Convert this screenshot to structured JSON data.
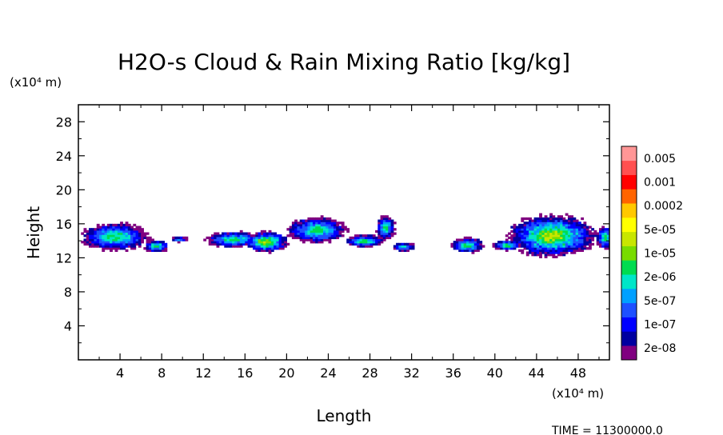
{
  "chart_data": {
    "type": "heatmap",
    "title": "H2O-s Cloud & Rain Mixing Ratio [kg/kg]",
    "xlabel": "Length",
    "ylabel": "Height",
    "x_unit": "(x10⁴ m)",
    "y_unit": "(x10⁴ m)",
    "xlim": [
      0,
      51
    ],
    "ylim": [
      0,
      30
    ],
    "x_ticks": [
      "4",
      "8",
      "12",
      "16",
      "20",
      "24",
      "28",
      "32",
      "36",
      "40",
      "44",
      "48"
    ],
    "y_ticks": [
      "4",
      "8",
      "12",
      "16",
      "20",
      "24",
      "28"
    ],
    "x_tick_values": [
      4,
      8,
      12,
      16,
      20,
      24,
      28,
      32,
      36,
      40,
      44,
      48
    ],
    "y_tick_values": [
      4,
      8,
      12,
      16,
      20,
      24,
      28
    ],
    "grid": false,
    "colorbar": {
      "levels": [
        "2e-08",
        "1e-07",
        "5e-07",
        "2e-06",
        "1e-05",
        "5e-05",
        "0.0002",
        "0.001",
        "0.005"
      ],
      "colors": [
        "#800080",
        "#0000a0",
        "#0000ff",
        "#1e50ff",
        "#00a0ff",
        "#00e6c8",
        "#00dc50",
        "#78dc00",
        "#c8e600",
        "#ffff00",
        "#ffc800",
        "#ff6400",
        "#ff0000",
        "#ff5050",
        "#ff9696"
      ]
    },
    "cloud_regions": [
      {
        "cx": 3.5,
        "cy": 14.5,
        "rx": 3.2,
        "ry": 1.6,
        "peak": 6
      },
      {
        "cx": 7.5,
        "cy": 13.4,
        "rx": 1.2,
        "ry": 0.7,
        "peak": 6
      },
      {
        "cx": 9.7,
        "cy": 14.2,
        "rx": 0.8,
        "ry": 0.3,
        "peak": 4
      },
      {
        "cx": 14.9,
        "cy": 14.2,
        "rx": 2.6,
        "ry": 0.9,
        "peak": 6
      },
      {
        "cx": 18.0,
        "cy": 13.9,
        "rx": 2.1,
        "ry": 1.2,
        "peak": 8
      },
      {
        "cx": 22.9,
        "cy": 15.3,
        "rx": 2.8,
        "ry": 1.5,
        "peak": 6
      },
      {
        "cx": 27.5,
        "cy": 14.0,
        "rx": 1.9,
        "ry": 0.7,
        "peak": 6
      },
      {
        "cx": 29.5,
        "cy": 15.6,
        "rx": 0.9,
        "ry": 1.4,
        "peak": 6
      },
      {
        "cx": 31.2,
        "cy": 13.3,
        "rx": 1.1,
        "ry": 0.5,
        "peak": 5
      },
      {
        "cx": 37.4,
        "cy": 13.5,
        "rx": 1.5,
        "ry": 0.9,
        "peak": 6
      },
      {
        "cx": 41.2,
        "cy": 13.5,
        "rx": 1.4,
        "ry": 0.6,
        "peak": 6
      },
      {
        "cx": 45.5,
        "cy": 14.6,
        "rx": 4.2,
        "ry": 2.4,
        "peak": 8
      },
      {
        "cx": 50.6,
        "cy": 14.4,
        "rx": 0.9,
        "ry": 1.3,
        "peak": 6
      }
    ]
  },
  "footer": {
    "time_label": "TIME = 11300000.0"
  }
}
